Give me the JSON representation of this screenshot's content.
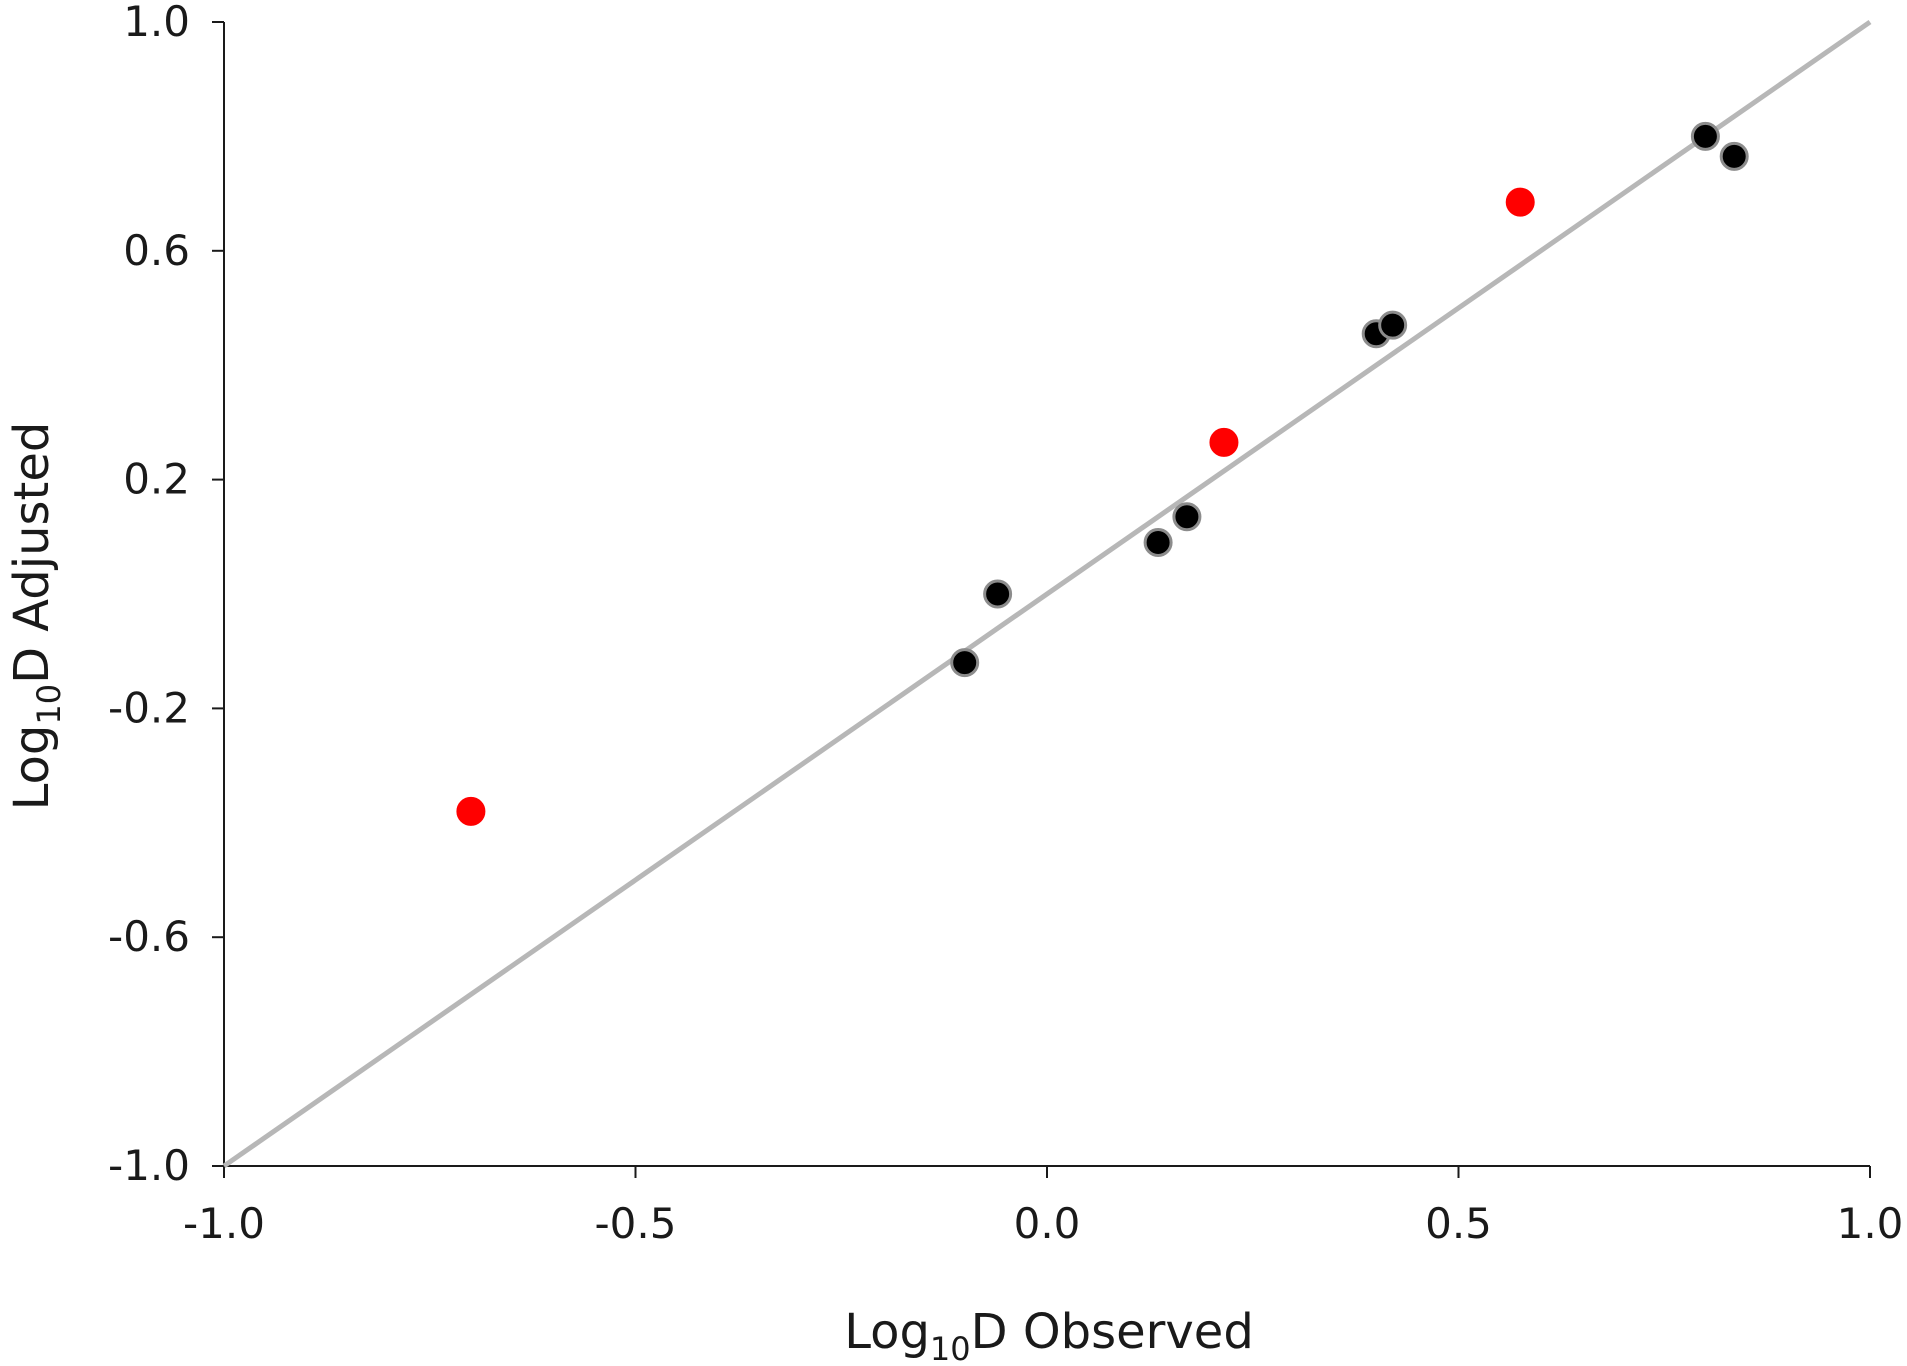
{
  "chart_data": {
    "type": "scatter",
    "title": "",
    "xlabel": {
      "base": "Log",
      "sub": "10",
      "rest": "D Observed"
    },
    "ylabel": {
      "base": "Log",
      "sub": "10",
      "rest": "D Adjusted"
    },
    "xlim": [
      -1.0,
      1.0
    ],
    "ylim": [
      -1.0,
      1.0
    ],
    "x_ticks": [
      -1.0,
      -0.5,
      0.0,
      0.5,
      1.0
    ],
    "x_tick_labels": [
      "-1.0",
      "-0.5",
      "0.0",
      "0.5",
      "1.0"
    ],
    "y_ticks": [
      -1.0,
      -0.6,
      -0.2,
      0.2,
      0.6,
      1.0
    ],
    "y_tick_labels": [
      "-1.0",
      "-0.6",
      "-0.2",
      "0.2",
      "0.6",
      "1.0"
    ],
    "grid": false,
    "legend": "none",
    "reference_line": {
      "from": [
        -1.0,
        -1.0
      ],
      "to": [
        1.0,
        1.0
      ],
      "color": "#b7b7b7"
    },
    "series": [
      {
        "color": "#000000",
        "edge_color": "#8c8c8c",
        "x": [
          -0.1,
          -0.06,
          0.135,
          0.17,
          0.4,
          0.42,
          0.8,
          0.835
        ],
        "y": [
          -0.12,
          0.0,
          0.09,
          0.135,
          0.455,
          0.47,
          0.8,
          0.765
        ]
      },
      {
        "color": "#ff0000",
        "edge_color": "#ff0000",
        "x": [
          -0.7,
          0.215,
          0.575
        ],
        "y": [
          -0.38,
          0.265,
          0.685
        ]
      }
    ]
  }
}
